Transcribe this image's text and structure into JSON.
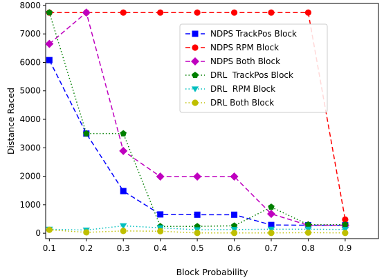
{
  "chart_data": {
    "type": "line",
    "xlabel": "Block Probability",
    "ylabel": "Distance Raced",
    "x": [
      0.1,
      0.2,
      0.3,
      0.4,
      0.5,
      0.6,
      0.7,
      0.8,
      0.9
    ],
    "xticks": [
      "0.1",
      "0.2",
      "0.3",
      "0.4",
      "0.5",
      "0.6",
      "0.7",
      "0.8",
      "0.9"
    ],
    "xlim": [
      0.09,
      0.99
    ],
    "ylim": [
      -190,
      8070
    ],
    "yticks": [
      0,
      1000,
      2000,
      3000,
      4000,
      5000,
      6000,
      7000,
      8000
    ],
    "ytick_labels": [
      "0",
      "1000",
      "2000",
      "3000",
      "4000",
      "5000",
      "6000",
      "7000",
      "8000"
    ],
    "grid": false,
    "legend_position": "upper-right",
    "series": [
      {
        "name": "NDPS TrackPos Block",
        "color": "#0000ff",
        "linestyle": "dashed",
        "marker": "square",
        "values": [
          6080,
          3500,
          1480,
          660,
          650,
          650,
          290,
          280,
          280
        ]
      },
      {
        "name": "NDPS RPM Block",
        "color": "#ff0000",
        "linestyle": "dashed",
        "marker": "circle",
        "values": [
          7750,
          7750,
          7750,
          7750,
          7750,
          7750,
          7750,
          7750,
          480
        ]
      },
      {
        "name": "NDPS Both Block",
        "color": "#bf00bf",
        "linestyle": "dashed",
        "marker": "diamond",
        "values": [
          6650,
          7750,
          2890,
          1990,
          1990,
          1990,
          680,
          280,
          280
        ]
      },
      {
        "name": "DRL  TrackPos Block",
        "color": "#007f00",
        "linestyle": "dotted",
        "marker": "pentagon",
        "values": [
          7750,
          3500,
          3500,
          240,
          240,
          260,
          920,
          300,
          300
        ]
      },
      {
        "name": "DRL  RPM Block",
        "color": "#00bfbf",
        "linestyle": "dotted",
        "marker": "triangle-down",
        "values": [
          140,
          110,
          260,
          190,
          120,
          130,
          140,
          140,
          130
        ]
      },
      {
        "name": "DRL Both Block",
        "color": "#bfbf00",
        "linestyle": "dotted",
        "marker": "circle",
        "values": [
          120,
          30,
          80,
          70,
          10,
          10,
          10,
          20,
          10
        ]
      }
    ]
  }
}
